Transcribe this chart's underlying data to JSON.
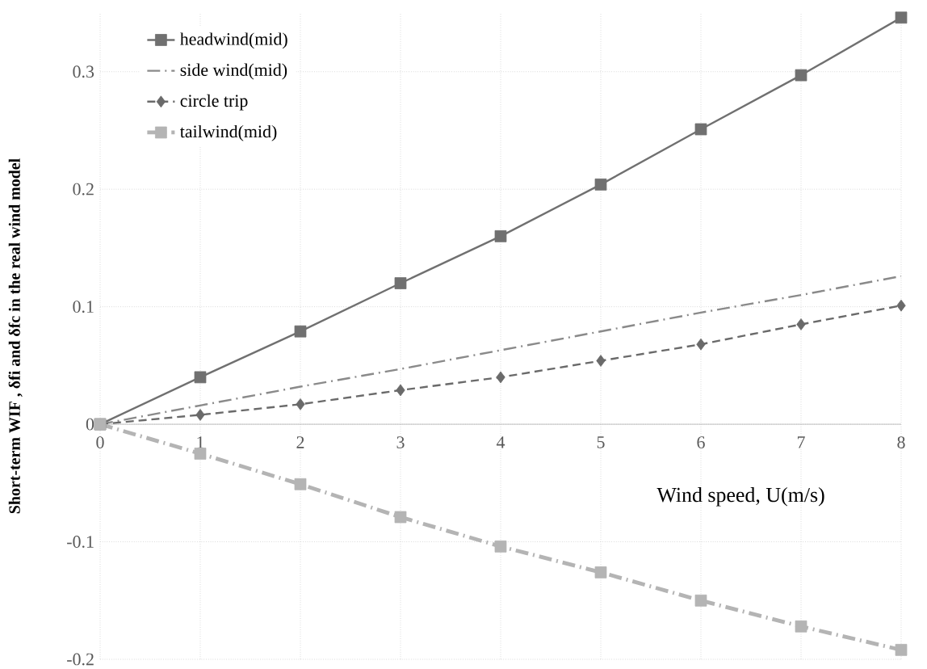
{
  "chart_data": {
    "type": "line",
    "xlabel": "Wind speed, U(m/s)",
    "ylabel": "Short-term WIF , δfi and δfc in the real wind model",
    "x": [
      0,
      1,
      2,
      3,
      4,
      5,
      6,
      7,
      8
    ],
    "xlim": [
      0,
      8
    ],
    "xticks": [
      0,
      1,
      2,
      3,
      4,
      5,
      6,
      7,
      8
    ],
    "ylim": [
      -0.2,
      0.35
    ],
    "yticks": [
      -0.2,
      -0.1,
      0,
      0.1,
      0.2,
      0.3
    ],
    "grid": true,
    "legend": "top left",
    "series": [
      {
        "name": "headwind(mid)",
        "color": "#707070",
        "marker": "square",
        "line_style": "solid",
        "values": [
          0,
          0.04,
          0.079,
          0.12,
          0.16,
          0.204,
          0.251,
          0.297,
          0.346
        ]
      },
      {
        "name": "side wind(mid)",
        "color": "#8a8a8a",
        "marker": "none",
        "line_style": "dashdot",
        "values": [
          0,
          0.016,
          0.032,
          0.047,
          0.063,
          0.079,
          0.095,
          0.11,
          0.126
        ]
      },
      {
        "name": "circle trip",
        "color": "#6a6a6a",
        "marker": "diamond",
        "line_style": "dashed",
        "values": [
          0,
          0.008,
          0.017,
          0.029,
          0.04,
          0.054,
          0.068,
          0.085,
          0.101
        ]
      },
      {
        "name": "tailwind(mid)",
        "color": "#b4b4b4",
        "marker": "square",
        "line_style": "dashdot",
        "values": [
          0,
          -0.025,
          -0.051,
          -0.079,
          -0.104,
          -0.126,
          -0.15,
          -0.172,
          -0.192
        ]
      }
    ]
  }
}
